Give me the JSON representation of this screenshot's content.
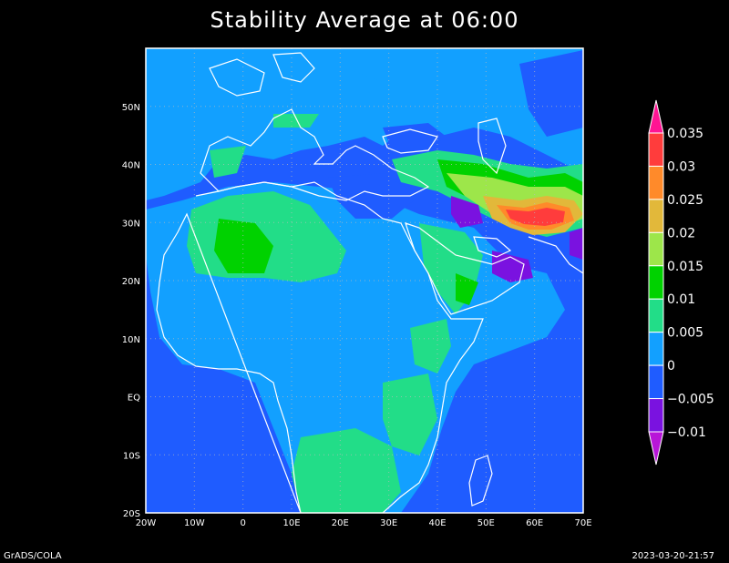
{
  "title": "Stability Average at 06:00",
  "footer_left": "GrADS/COLA",
  "footer_right": "2023-03-20-21:57",
  "map": {
    "lon_range": [
      -20,
      70
    ],
    "lat_range": [
      -20,
      60
    ],
    "x_ticks": [
      {
        "value": -20,
        "label": "20W"
      },
      {
        "value": -10,
        "label": "10W"
      },
      {
        "value": 0,
        "label": "0"
      },
      {
        "value": 10,
        "label": "10E"
      },
      {
        "value": 20,
        "label": "20E"
      },
      {
        "value": 30,
        "label": "30E"
      },
      {
        "value": 40,
        "label": "40E"
      },
      {
        "value": 50,
        "label": "50E"
      },
      {
        "value": 60,
        "label": "60E"
      },
      {
        "value": 70,
        "label": "70E"
      }
    ],
    "y_ticks": [
      {
        "value": -20,
        "label": "20S"
      },
      {
        "value": -10,
        "label": "10S"
      },
      {
        "value": 0,
        "label": "EQ"
      },
      {
        "value": 10,
        "label": "10N"
      },
      {
        "value": 20,
        "label": "20N"
      },
      {
        "value": 30,
        "label": "30N"
      },
      {
        "value": 40,
        "label": "40N"
      },
      {
        "value": 50,
        "label": "50N"
      }
    ],
    "background_color": "#1f5cff",
    "coastline_color": "#ffffff"
  },
  "colorbar": {
    "levels": [
      "0.035",
      "0.03",
      "0.025",
      "0.02",
      "0.015",
      "0.01",
      "0.005",
      "0",
      "−0.005",
      "−0.01"
    ],
    "colors": [
      "#ff1493",
      "#ff3c3c",
      "#ff8a2a",
      "#e2b83a",
      "#9de64a",
      "#00d200",
      "#22dd88",
      "#12a0ff",
      "#1f5cff",
      "#7a12e0",
      "#b816d8"
    ]
  }
}
